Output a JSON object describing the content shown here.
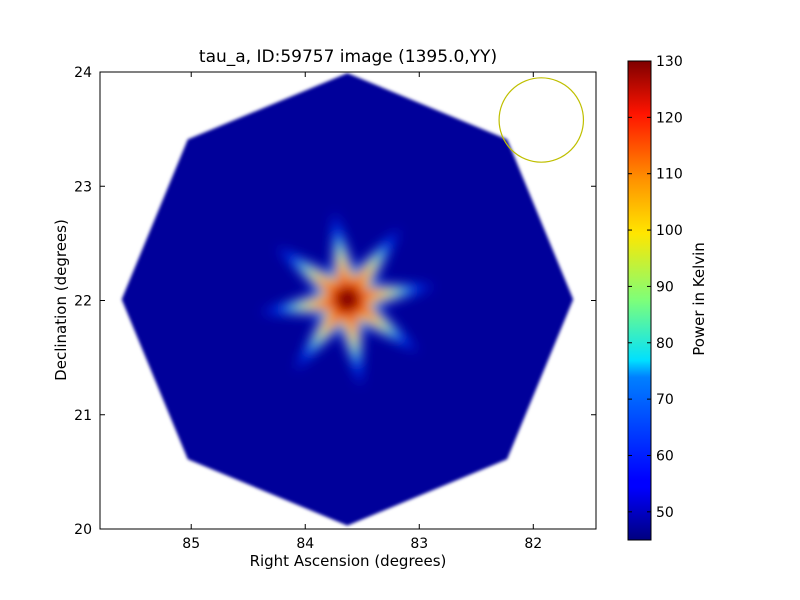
{
  "chart_data": {
    "type": "heatmap",
    "title": "tau_a, ID:59757 image (1395.0,YY)",
    "xlabel": "Right Ascension (degrees)",
    "ylabel": "Declination (degrees)",
    "xlim": [
      85.8,
      81.45
    ],
    "ylim": [
      20,
      24
    ],
    "xticks": [
      85,
      84,
      83,
      82
    ],
    "yticks": [
      20,
      21,
      22,
      23,
      24
    ],
    "grid": false,
    "colorbar": {
      "label": "Power in Kelvin",
      "min": 45,
      "max": 130,
      "ticks": [
        50,
        60,
        70,
        80,
        90,
        100,
        110,
        120,
        130
      ],
      "colormap": "jet"
    },
    "field_of_view": {
      "shape": "octagon",
      "center_ra": 83.63,
      "center_dec": 22.01,
      "radius_deg": 1.98,
      "background_value": 47
    },
    "source": {
      "ra": 83.63,
      "dec": 22.01,
      "peak_value": 130,
      "spike_count": 8,
      "spike_extent_deg": 0.62,
      "core_extent_deg": 0.26
    },
    "beam_marker": {
      "ra": 81.93,
      "dec": 23.58,
      "radius_deg": 0.37,
      "color": "#bfbf00"
    }
  }
}
